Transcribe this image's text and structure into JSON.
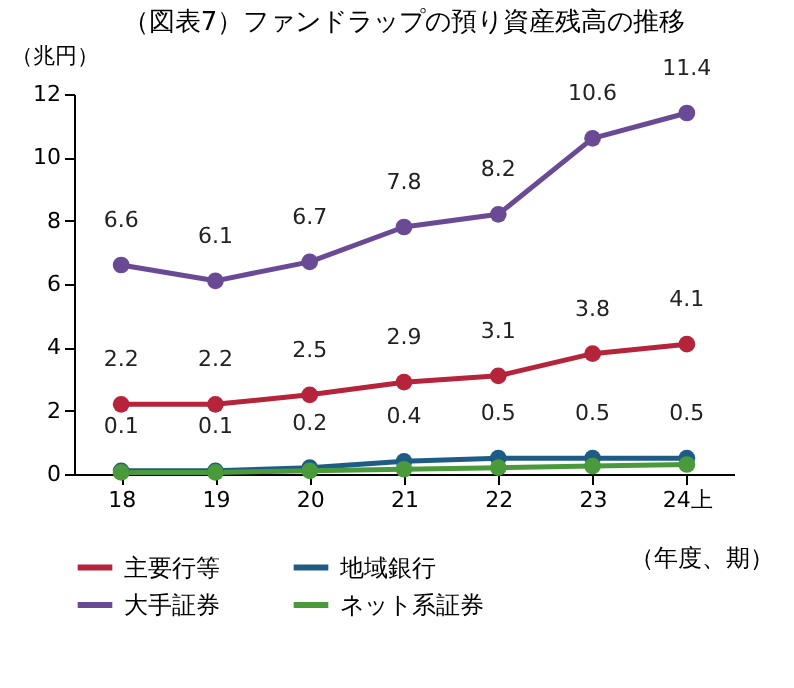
{
  "chart_data": {
    "type": "line",
    "title": "（図表7）ファンドラップの預り資産残高の推移",
    "ylabel": "（兆円）",
    "xlabel": "（年度、期）",
    "categories": [
      "18",
      "19",
      "20",
      "21",
      "22",
      "23",
      "24上"
    ],
    "ylim": [
      0,
      12
    ],
    "yticks": [
      0,
      2,
      4,
      6,
      8,
      10,
      12
    ],
    "grid": false,
    "legend": "bottom",
    "marker": "circle",
    "line_style": "solid",
    "series": [
      {
        "name": "主要行等",
        "color": "#b5243a",
        "values": [
          2.2,
          2.2,
          2.5,
          2.9,
          3.1,
          3.8,
          4.1
        ],
        "value_labels": [
          "2.2",
          "2.2",
          "2.5",
          "2.9",
          "3.1",
          "3.8",
          "4.1"
        ]
      },
      {
        "name": "地域銀行",
        "color": "#1f5c85",
        "values": [
          0.1,
          0.1,
          0.2,
          0.4,
          0.5,
          0.5,
          0.5
        ],
        "value_labels": [
          "0.1",
          "0.1",
          "0.2",
          "0.4",
          "0.5",
          "0.5",
          "0.5"
        ]
      },
      {
        "name": "大手証券",
        "color": "#6a4a94",
        "values": [
          6.6,
          6.1,
          6.7,
          7.8,
          8.2,
          10.6,
          11.4
        ],
        "value_labels": [
          "6.6",
          "6.1",
          "6.7",
          "7.8",
          "8.2",
          "10.6",
          "11.4"
        ]
      },
      {
        "name": "ネット系証券",
        "color": "#4a9a3c",
        "values": [
          0.05,
          0.05,
          0.1,
          0.15,
          0.2,
          0.25,
          0.3
        ]
      }
    ]
  }
}
